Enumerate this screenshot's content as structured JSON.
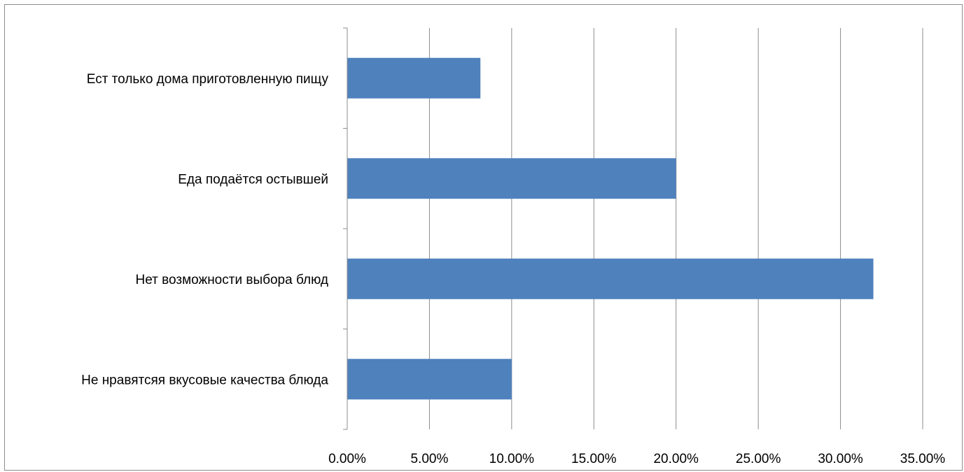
{
  "chart_data": {
    "type": "bar",
    "orientation": "horizontal",
    "categories": [
      "Ест только дома приготовленную пищу",
      "Еда подаётся остывшей",
      "Нет возможности выбора блюд",
      "Не нравятсяя вкусовые качества блюда"
    ],
    "values": [
      0.081,
      0.2,
      0.32,
      0.1
    ],
    "xlim": [
      0,
      0.35
    ],
    "x_ticks": [
      0,
      0.05,
      0.1,
      0.15,
      0.2,
      0.25,
      0.3,
      0.35
    ],
    "x_tick_labels": [
      "0.00%",
      "5.00%",
      "10.00%",
      "15.00%",
      "20.00%",
      "25.00%",
      "30.00%",
      "35.00%"
    ],
    "bar_color": "#4f81bd",
    "grid": true,
    "legend": "none"
  }
}
